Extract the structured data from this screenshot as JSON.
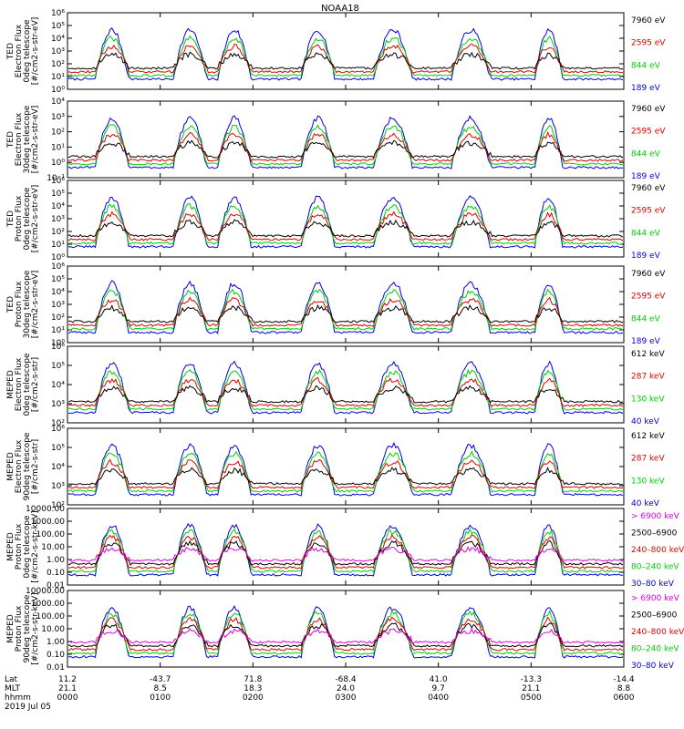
{
  "chart_data": {
    "type": "line",
    "title": "NOAA18",
    "panels": [
      {
        "ylabel": [
          "TED",
          "Electron Flux",
          "0deg telescope",
          "[#/cm2-s-str-eV]"
        ],
        "ytick_labels": [
          "10⁶",
          "10⁵",
          "10⁴",
          "10³",
          "10²",
          "10¹",
          "10⁰"
        ],
        "legend": [
          {
            "label": "7960 eV",
            "color": "#000000"
          },
          {
            "label": "2595 eV",
            "color": "#e00000"
          },
          {
            "label": "844 eV",
            "color": "#00d000"
          },
          {
            "label": "189 eV",
            "color": "#0000e0"
          }
        ]
      },
      {
        "ylabel": [
          "TED",
          "Electron Flux",
          "30deg telescope",
          "[#/cm2-s-str-eV]"
        ],
        "ytick_labels": [
          "10⁴",
          "10³",
          "10²",
          "10¹",
          "10⁰",
          "10⁻¹"
        ],
        "legend": [
          {
            "label": "7960 eV",
            "color": "#000000"
          },
          {
            "label": "2595 eV",
            "color": "#e00000"
          },
          {
            "label": "844 eV",
            "color": "#00d000"
          },
          {
            "label": "189 eV",
            "color": "#0000e0"
          }
        ]
      },
      {
        "ylabel": [
          "TED",
          "Proton Flux",
          "0deg telescope",
          "[#/cm2-s-str-eV]"
        ],
        "ytick_labels": [
          "10⁶",
          "10⁵",
          "10⁴",
          "10³",
          "10²",
          "10¹",
          "10⁰"
        ],
        "legend": [
          {
            "label": "7960 eV",
            "color": "#000000"
          },
          {
            "label": "2595 eV",
            "color": "#e00000"
          },
          {
            "label": "844 eV",
            "color": "#00d000"
          },
          {
            "label": "189 eV",
            "color": "#0000e0"
          }
        ]
      },
      {
        "ylabel": [
          "TED",
          "Proton Flux",
          "30deg telescope",
          "[#/cm2-s-str-eV]"
        ],
        "ytick_labels": [
          "10⁶",
          "10⁵",
          "10⁴",
          "10³",
          "10²",
          "10¹",
          "10⁰"
        ],
        "legend": [
          {
            "label": "7960 eV",
            "color": "#000000"
          },
          {
            "label": "2595 eV",
            "color": "#e00000"
          },
          {
            "label": "844 eV",
            "color": "#00d000"
          },
          {
            "label": "189 eV",
            "color": "#0000e0"
          }
        ]
      },
      {
        "ylabel": [
          "MEPED",
          "Electron Flux",
          "0deg telescope",
          "[#/cm2-s-str]"
        ],
        "ytick_labels": [
          "10⁶",
          "10⁵",
          "10⁴",
          "10³",
          "10²"
        ],
        "legend": [
          {
            "label": "612 keV",
            "color": "#000000"
          },
          {
            "label": "287 keV",
            "color": "#e00000"
          },
          {
            "label": "130 keV",
            "color": "#00d000"
          },
          {
            "label": "40 keV",
            "color": "#0000e0"
          }
        ]
      },
      {
        "ylabel": [
          "MEPED",
          "Electron Flux",
          "90deg telescope",
          "[#/cm2-s-str]"
        ],
        "ytick_labels": [
          "10⁶",
          "10⁵",
          "10⁴",
          "10³",
          "10²"
        ],
        "legend": [
          {
            "label": "612 keV",
            "color": "#000000"
          },
          {
            "label": "287 keV",
            "color": "#e00000"
          },
          {
            "label": "130 keV",
            "color": "#00d000"
          },
          {
            "label": "40 keV",
            "color": "#0000e0"
          }
        ]
      },
      {
        "ylabel": [
          "MEPED",
          "Proton Flux",
          "0deg telescope",
          "[#/cm2-s-str-keV]"
        ],
        "ytick_labels": [
          "10000.00",
          "1000.00",
          "100.00",
          "10.00",
          "1.00",
          "0.10",
          "0.01"
        ],
        "legend": [
          {
            "label": "> 6900 keV",
            "color": "#e000e0"
          },
          {
            "label": "2500–6900",
            "color": "#000000"
          },
          {
            "label": "240–800 keV",
            "color": "#e00000"
          },
          {
            "label": "80–240 keV",
            "color": "#00d000"
          },
          {
            "label": "30–80 keV",
            "color": "#0000e0"
          }
        ]
      },
      {
        "ylabel": [
          "MEPED",
          "Proton Flux",
          "90deg telescope",
          "[#/cm2-s-str-keV]"
        ],
        "ytick_labels": [
          "10000.00",
          "1000.00",
          "100.00",
          "10.00",
          "1.00",
          "0.10",
          "0.01"
        ],
        "legend": [
          {
            "label": "> 6900 keV",
            "color": "#e000e0"
          },
          {
            "label": "2500–6900",
            "color": "#000000"
          },
          {
            "label": "240–800 keV",
            "color": "#e00000"
          },
          {
            "label": "80–240 keV",
            "color": "#00d000"
          },
          {
            "label": "30–80 keV",
            "color": "#0000e0"
          }
        ]
      }
    ],
    "x_axis": {
      "rows": [
        {
          "label": "Lat",
          "values": [
            "11.2",
            "-43.7",
            "71.8",
            "-68.4",
            "41.0",
            "-13.3",
            "-14.4"
          ]
        },
        {
          "label": "MLT",
          "values": [
            "21.1",
            "8.5",
            "18.3",
            "24.0",
            "9.7",
            "21.1",
            "8.8"
          ]
        },
        {
          "label": "hhmm",
          "values": [
            "0000",
            "0100",
            "0200",
            "0300",
            "0400",
            "0500",
            "0600"
          ]
        }
      ],
      "date": "2019 Jul 05"
    }
  }
}
